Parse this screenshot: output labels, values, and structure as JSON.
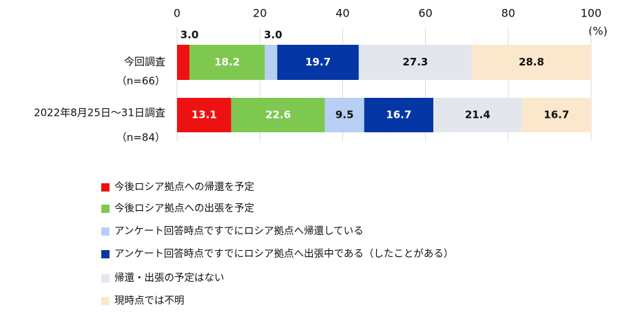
{
  "chart_data": {
    "type": "stacked_barh",
    "x_label": "(%)",
    "categories": [
      "今回調査",
      "2022年8月25日～31日調査"
    ],
    "category_notes": [
      "（n=66）",
      "（n=84）"
    ],
    "xlim": [
      0,
      100
    ],
    "xticks": [
      0,
      20,
      40,
      60,
      80,
      100
    ],
    "grid": true,
    "series": [
      {
        "name": "今後ロシア拠点への帰還を予定",
        "color": "#ee1111",
        "label_color": "#ffffff",
        "values": [
          3.0,
          13.1
        ],
        "value_labels": [
          "3.0",
          "13.1"
        ]
      },
      {
        "name": "今後ロシア拠点への出張を予定",
        "color": "#7ec850",
        "label_color": "#ffffff",
        "values": [
          18.2,
          22.6
        ],
        "value_labels": [
          "18.2",
          "22.6"
        ]
      },
      {
        "name": "アンケート回答時点ですでにロシア拠点へ帰還している",
        "color": "#b8cff4",
        "label_color": "#111111",
        "values": [
          3.0,
          9.5
        ],
        "value_labels": [
          "3.0",
          "9.5"
        ]
      },
      {
        "name": "アンケート回答時点ですでにロシア拠点へ出張中である（したことがある）",
        "color": "#0536a5",
        "label_color": "#ffffff",
        "values": [
          19.7,
          16.7
        ],
        "value_labels": [
          "19.7",
          "16.7"
        ]
      },
      {
        "name": "帰還・出張の予定はない",
        "color": "#e3e6ec",
        "label_color": "#111111",
        "values": [
          27.3,
          21.4
        ],
        "value_labels": [
          "27.3",
          "21.4"
        ]
      },
      {
        "name": "現時点では不明",
        "color": "#fbe8cc",
        "label_color": "#111111",
        "values": [
          28.8,
          16.7
        ],
        "value_labels": [
          "28.8",
          "16.7"
        ]
      }
    ]
  }
}
